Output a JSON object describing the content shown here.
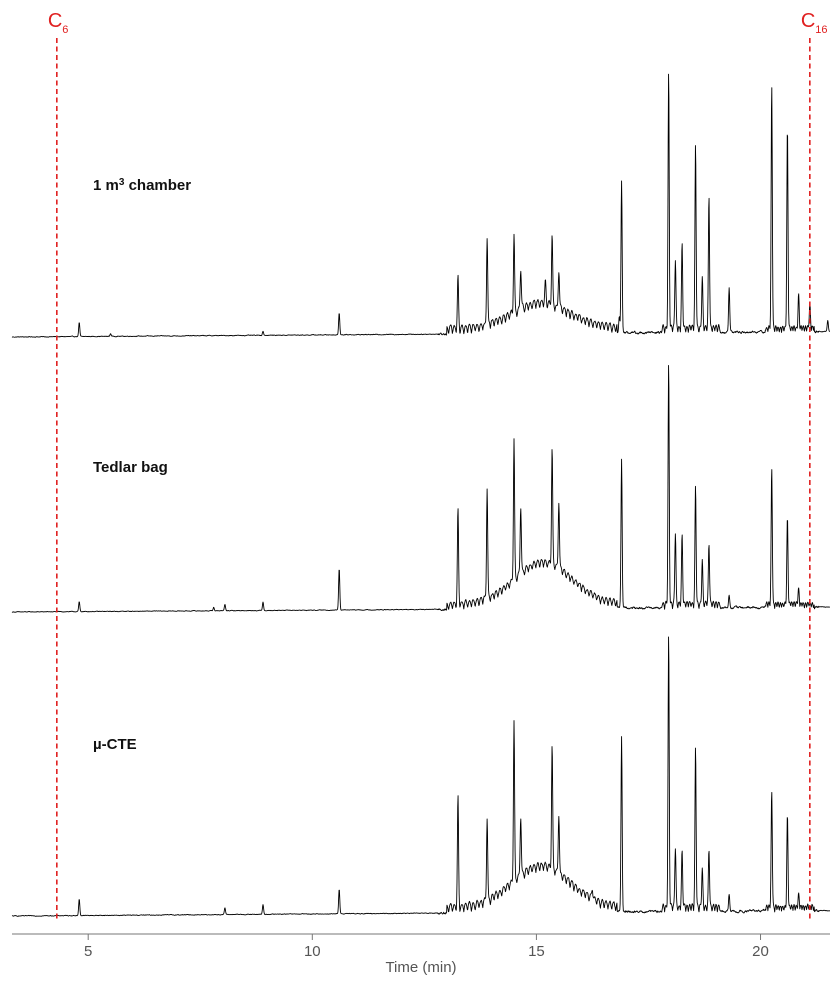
{
  "chart_data": {
    "type": "line",
    "xlabel": "Time (min)",
    "xlim": [
      3.3,
      21.55
    ],
    "xticks": [
      5,
      10,
      15,
      20
    ],
    "ylabel": "",
    "grid": false,
    "legend": "none",
    "markers": [
      {
        "base": "C",
        "sub": "6",
        "x": 4.3,
        "color": "#e02020"
      },
      {
        "base": "C",
        "sub": "16",
        "x": 21.1,
        "color": "#e02020"
      }
    ],
    "series": [
      {
        "name": "1 m³ chamber",
        "name_base": "1 m",
        "name_sup": "3",
        "name_rest": " chamber",
        "baseline": 0.03,
        "drift": 0.02,
        "hump_amp": 0.09,
        "hump_center": 15.1,
        "hump_width": 0.9,
        "peaks": [
          [
            4.8,
            0.05
          ],
          [
            5.5,
            0.01
          ],
          [
            8.9,
            0.015
          ],
          [
            10.6,
            0.08
          ],
          [
            13.25,
            0.18
          ],
          [
            13.9,
            0.32
          ],
          [
            14.5,
            0.28
          ],
          [
            14.65,
            0.15
          ],
          [
            15.2,
            0.08
          ],
          [
            15.35,
            0.25
          ],
          [
            15.5,
            0.14
          ],
          [
            16.85,
            0.06
          ],
          [
            16.9,
            0.55
          ],
          [
            17.95,
            0.92
          ],
          [
            18.1,
            0.25
          ],
          [
            18.25,
            0.3
          ],
          [
            18.55,
            0.66
          ],
          [
            18.7,
            0.18
          ],
          [
            18.85,
            0.48
          ],
          [
            19.3,
            0.16
          ],
          [
            20.25,
            0.88
          ],
          [
            20.6,
            0.72
          ],
          [
            20.85,
            0.12
          ],
          [
            21.1,
            0.08
          ],
          [
            21.5,
            0.04
          ]
        ]
      },
      {
        "name": "Tedlar bag",
        "baseline": 0.03,
        "drift": 0.02,
        "hump_amp": 0.17,
        "hump_center": 15.15,
        "hump_width": 0.9,
        "peaks": [
          [
            4.8,
            0.04
          ],
          [
            7.8,
            0.015
          ],
          [
            8.05,
            0.025
          ],
          [
            8.9,
            0.035
          ],
          [
            10.6,
            0.17
          ],
          [
            13.25,
            0.38
          ],
          [
            13.9,
            0.45
          ],
          [
            14.5,
            0.57
          ],
          [
            14.65,
            0.28
          ],
          [
            15.35,
            0.47
          ],
          [
            15.5,
            0.28
          ],
          [
            16.9,
            0.6
          ],
          [
            17.95,
            0.97
          ],
          [
            18.1,
            0.3
          ],
          [
            18.25,
            0.28
          ],
          [
            18.55,
            0.48
          ],
          [
            18.7,
            0.18
          ],
          [
            18.85,
            0.24
          ],
          [
            19.3,
            0.05
          ],
          [
            20.25,
            0.55
          ],
          [
            20.6,
            0.35
          ],
          [
            20.85,
            0.06
          ]
        ]
      },
      {
        "name": "µ-CTE",
        "baseline": 0.03,
        "drift": 0.02,
        "hump_amp": 0.15,
        "hump_center": 15.1,
        "hump_width": 0.9,
        "peaks": [
          [
            4.8,
            0.06
          ],
          [
            8.05,
            0.025
          ],
          [
            8.9,
            0.035
          ],
          [
            10.6,
            0.09
          ],
          [
            13.25,
            0.4
          ],
          [
            13.9,
            0.3
          ],
          [
            14.5,
            0.58
          ],
          [
            14.65,
            0.22
          ],
          [
            15.35,
            0.45
          ],
          [
            15.5,
            0.22
          ],
          [
            16.25,
            0.04
          ],
          [
            16.9,
            0.63
          ],
          [
            17.95,
            0.98
          ],
          [
            18.1,
            0.22
          ],
          [
            18.25,
            0.2
          ],
          [
            18.55,
            0.58
          ],
          [
            18.7,
            0.14
          ],
          [
            18.85,
            0.21
          ],
          [
            19.3,
            0.06
          ],
          [
            20.25,
            0.42
          ],
          [
            20.6,
            0.33
          ],
          [
            20.85,
            0.05
          ]
        ]
      }
    ]
  }
}
